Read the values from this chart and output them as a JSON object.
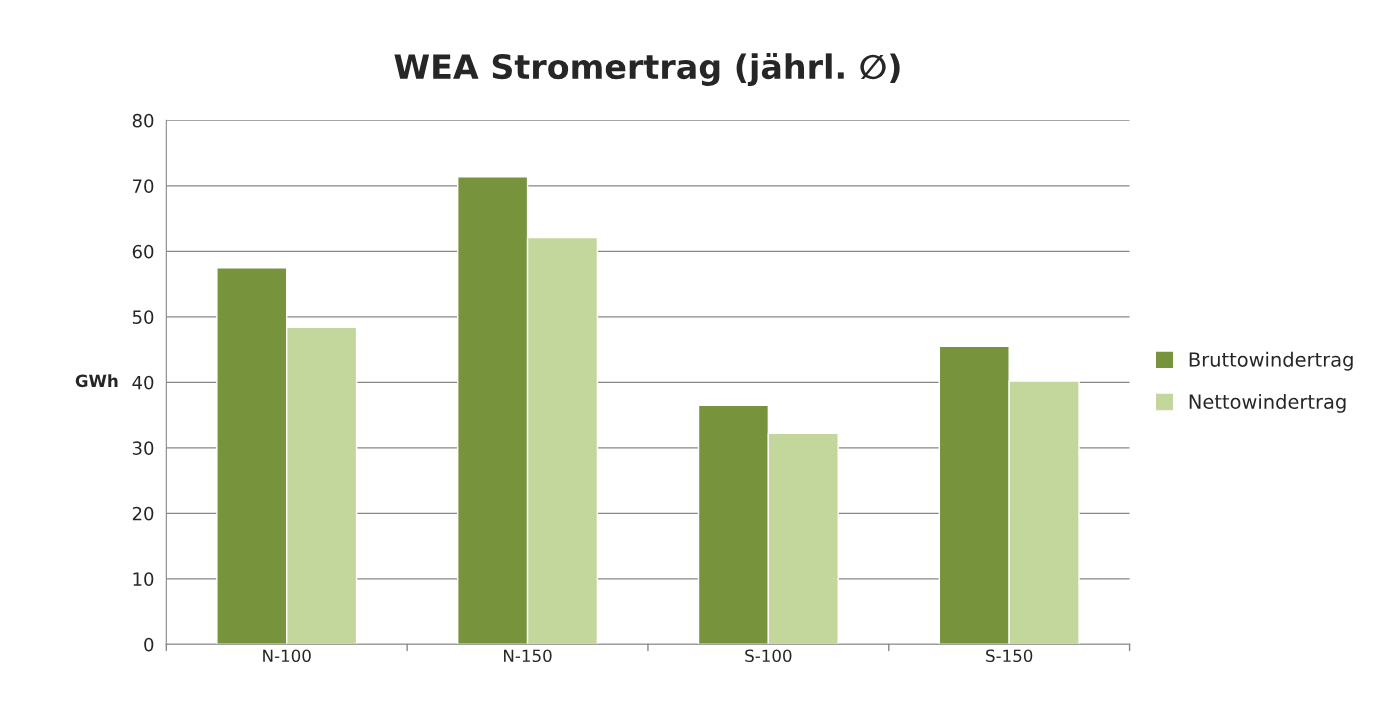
{
  "chart_data": {
    "type": "bar",
    "title": "WEA Stromertrag (jährl. ∅)",
    "ylabel": "GWh",
    "categories": [
      "N-100",
      "N-150",
      "S-100",
      "S-150"
    ],
    "series": [
      {
        "name": "Bruttowindertrag",
        "color": "#77933c",
        "values": [
          57.5,
          71.4,
          36.5,
          45.5
        ]
      },
      {
        "name": "Nettowindertrag",
        "color": "#c3d69b",
        "values": [
          48.4,
          62.1,
          32.2,
          40.2
        ]
      }
    ],
    "ylim": [
      0,
      80
    ],
    "yticks": [
      0,
      10,
      20,
      30,
      40,
      50,
      60,
      70,
      80
    ],
    "grid": "y",
    "legend": "right"
  }
}
